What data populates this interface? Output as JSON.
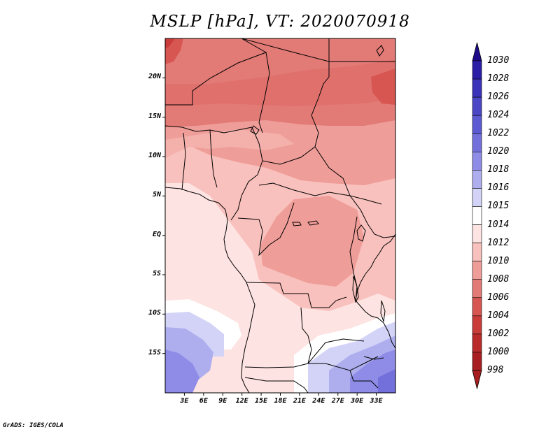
{
  "title": "MSLP [hPa], VT: 2020070918",
  "footer": "GrADS: IGES/COLA",
  "map": {
    "variable": "MSLP",
    "units": "hPa",
    "valid_time": "2020070918",
    "lon_range": [
      0,
      36
    ],
    "lat_range": [
      -20,
      25
    ],
    "lat_ticks": [
      {
        "value": 20,
        "label": "20N"
      },
      {
        "value": 15,
        "label": "15N"
      },
      {
        "value": 10,
        "label": "10N"
      },
      {
        "value": 5,
        "label": "5N"
      },
      {
        "value": 0,
        "label": "EQ"
      },
      {
        "value": -5,
        "label": "5S"
      },
      {
        "value": -10,
        "label": "10S"
      },
      {
        "value": -15,
        "label": "15S"
      }
    ],
    "lon_ticks": [
      {
        "value": 3,
        "label": "3E"
      },
      {
        "value": 6,
        "label": "6E"
      },
      {
        "value": 9,
        "label": "9E"
      },
      {
        "value": 12,
        "label": "12E"
      },
      {
        "value": 15,
        "label": "15E"
      },
      {
        "value": 18,
        "label": "18E"
      },
      {
        "value": 21,
        "label": "21E"
      },
      {
        "value": 24,
        "label": "24E"
      },
      {
        "value": 27,
        "label": "27E"
      },
      {
        "value": 30,
        "label": "30E"
      },
      {
        "value": 33,
        "label": "33E"
      }
    ]
  },
  "colorbar": {
    "levels": [
      {
        "label": "1030",
        "color": "#1e0b8c"
      },
      {
        "label": "1028",
        "color": "#2a1ea6"
      },
      {
        "label": "1026",
        "color": "#3a32b8"
      },
      {
        "label": "1024",
        "color": "#4a46c6"
      },
      {
        "label": "1022",
        "color": "#5c5ad2"
      },
      {
        "label": "1020",
        "color": "#7370dc"
      },
      {
        "label": "1018",
        "color": "#8e8ce6"
      },
      {
        "label": "1016",
        "color": "#aeaeef"
      },
      {
        "label": "1015",
        "color": "#d2d3f6"
      },
      {
        "label": "1014",
        "color": "#ffffff"
      },
      {
        "label": "1012",
        "color": "#fde3e1"
      },
      {
        "label": "1010",
        "color": "#f9c1bd"
      },
      {
        "label": "1008",
        "color": "#ef9d98"
      },
      {
        "label": "1006",
        "color": "#e27a76"
      },
      {
        "label": "1004",
        "color": "#d85652"
      },
      {
        "label": "1002",
        "color": "#c93c3a"
      },
      {
        "label": "1000",
        "color": "#ba2a2a"
      },
      {
        "label": "998",
        "color": "#a81e20"
      }
    ]
  }
}
